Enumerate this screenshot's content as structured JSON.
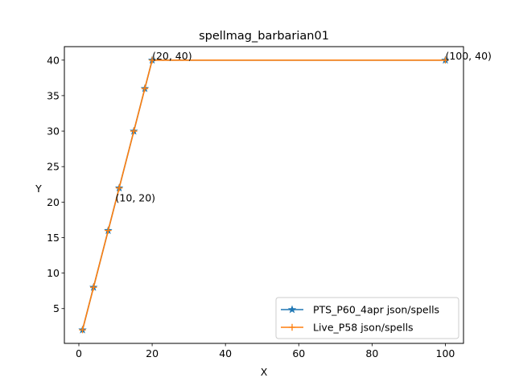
{
  "chart_data": {
    "type": "line",
    "title": "spellmag_barbarian01",
    "xlabel": "X",
    "ylabel": "Y",
    "xlim": [
      -3.95,
      104.95
    ],
    "ylim": [
      0.1,
      41.9
    ],
    "xticks": [
      0,
      20,
      40,
      60,
      80,
      100
    ],
    "yticks": [
      5,
      10,
      15,
      20,
      25,
      30,
      35,
      40
    ],
    "grid": false,
    "legend_position": "lower right",
    "series": [
      {
        "name": "PTS_P60_4apr json/spells",
        "color": "#1f77b4",
        "marker": "star",
        "x": [
          1,
          4,
          8,
          11,
          15,
          18,
          20,
          100
        ],
        "y": [
          2,
          8,
          16,
          22,
          30,
          36,
          40,
          40
        ]
      },
      {
        "name": "Live_P58 json/spells",
        "color": "#ff7f0e",
        "marker": "plus",
        "x": [
          1,
          4,
          8,
          11,
          15,
          18,
          20,
          100
        ],
        "y": [
          2,
          8,
          16,
          22,
          30,
          36,
          40,
          40
        ]
      }
    ],
    "annotations": [
      {
        "text": "(10, 20)",
        "x": 10,
        "y": 20
      },
      {
        "text": "(20, 40)",
        "x": 20,
        "y": 40
      },
      {
        "text": "(100, 40)",
        "x": 100,
        "y": 40
      }
    ]
  }
}
